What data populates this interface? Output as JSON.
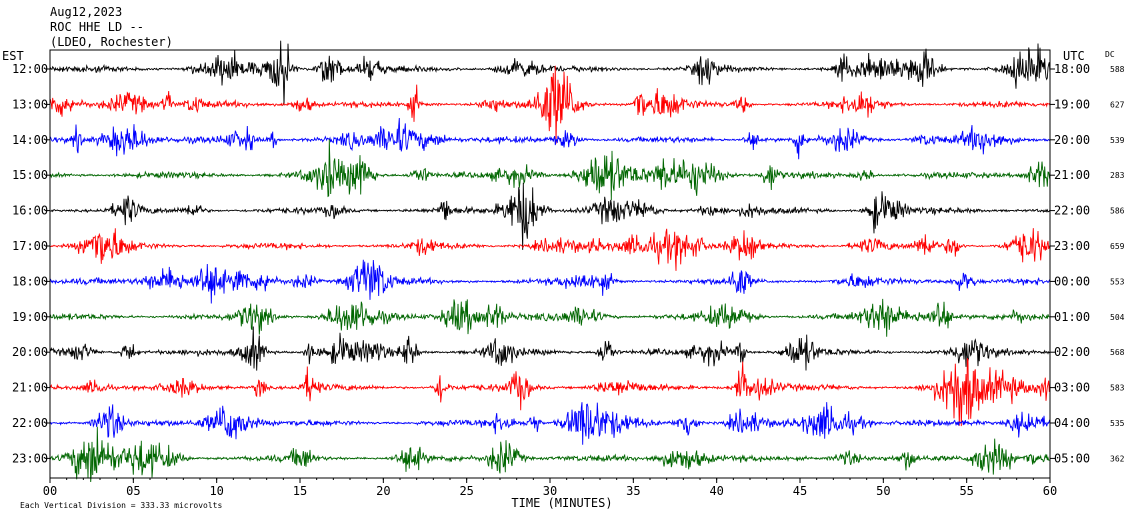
{
  "header": {
    "date": "Aug12,2023",
    "station": "ROC HHE LD --",
    "network": "(LDEO, Rochester)"
  },
  "chart_data": {
    "type": "line",
    "title": "ROC HHE LD --",
    "left_axis_label": "EST",
    "right_axis_label": "UTC",
    "dc_label": "DC",
    "xlabel": "TIME (MINUTES)",
    "xlim": [
      0,
      60
    ],
    "x_ticks": [
      "00",
      "05",
      "10",
      "15",
      "20",
      "25",
      "30",
      "35",
      "40",
      "45",
      "50",
      "55",
      "60"
    ],
    "footer": "Each Vertical Division = 333.33 microvolts",
    "trace_colors": [
      "#000000",
      "#ff0000",
      "#0000ff",
      "#006600"
    ],
    "rows": [
      {
        "est": "12:00",
        "utc": "18:00",
        "dc": "588"
      },
      {
        "est": "13:00",
        "utc": "19:00",
        "dc": "627"
      },
      {
        "est": "14:00",
        "utc": "20:00",
        "dc": "539"
      },
      {
        "est": "15:00",
        "utc": "21:00",
        "dc": "283"
      },
      {
        "est": "16:00",
        "utc": "22:00",
        "dc": "586"
      },
      {
        "est": "17:00",
        "utc": "23:00",
        "dc": "659"
      },
      {
        "est": "18:00",
        "utc": "00:00",
        "dc": "553"
      },
      {
        "est": "19:00",
        "utc": "01:00",
        "dc": "504"
      },
      {
        "est": "20:00",
        "utc": "02:00",
        "dc": "568"
      },
      {
        "est": "21:00",
        "utc": "03:00",
        "dc": "583"
      },
      {
        "est": "22:00",
        "utc": "04:00",
        "dc": "535"
      },
      {
        "est": "23:00",
        "utc": "05:00",
        "dc": "362"
      }
    ]
  }
}
